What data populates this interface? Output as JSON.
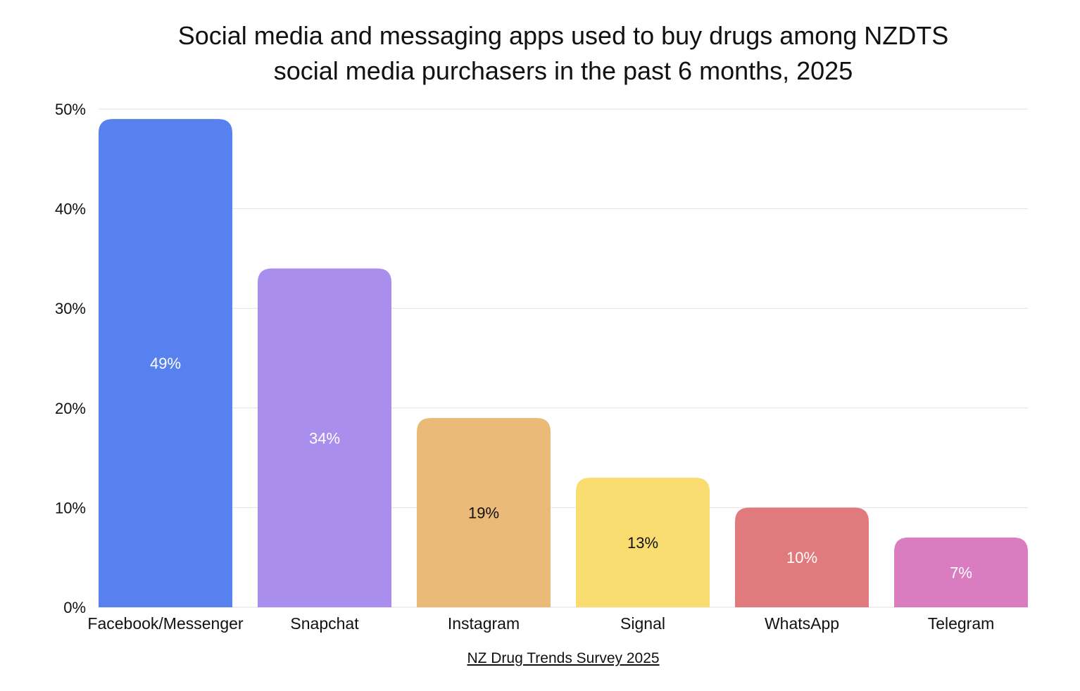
{
  "chart_data": {
    "type": "bar",
    "title_lines": [
      "Social media and messaging apps used to buy drugs among NZDTS",
      "social media purchasers in the past 6 months, 2025"
    ],
    "categories": [
      "Facebook/Messenger",
      "Snapchat",
      "Instagram",
      "Signal",
      "WhatsApp",
      "Telegram"
    ],
    "values": [
      49,
      34,
      19,
      13,
      10,
      7
    ],
    "data_labels": [
      "49%",
      "34%",
      "19%",
      "13%",
      "10%",
      "7%"
    ],
    "colors": [
      "#5781EF",
      "#A98EEE",
      "#E9BA78",
      "#F9DD70",
      "#E17A7C",
      "#DA7DC0"
    ],
    "label_colors": [
      "#ffffff",
      "#ffffff",
      "#111111",
      "#111111",
      "#ffffff",
      "#ffffff"
    ],
    "ylim": [
      0,
      50
    ],
    "yticks": [
      0,
      10,
      20,
      30,
      40,
      50
    ],
    "ytick_labels": [
      "0%",
      "10%",
      "20%",
      "30%",
      "40%",
      "50%"
    ],
    "grid": true,
    "xlabel": "",
    "ylabel": "",
    "source": "NZ Drug Trends Survey 2025"
  }
}
